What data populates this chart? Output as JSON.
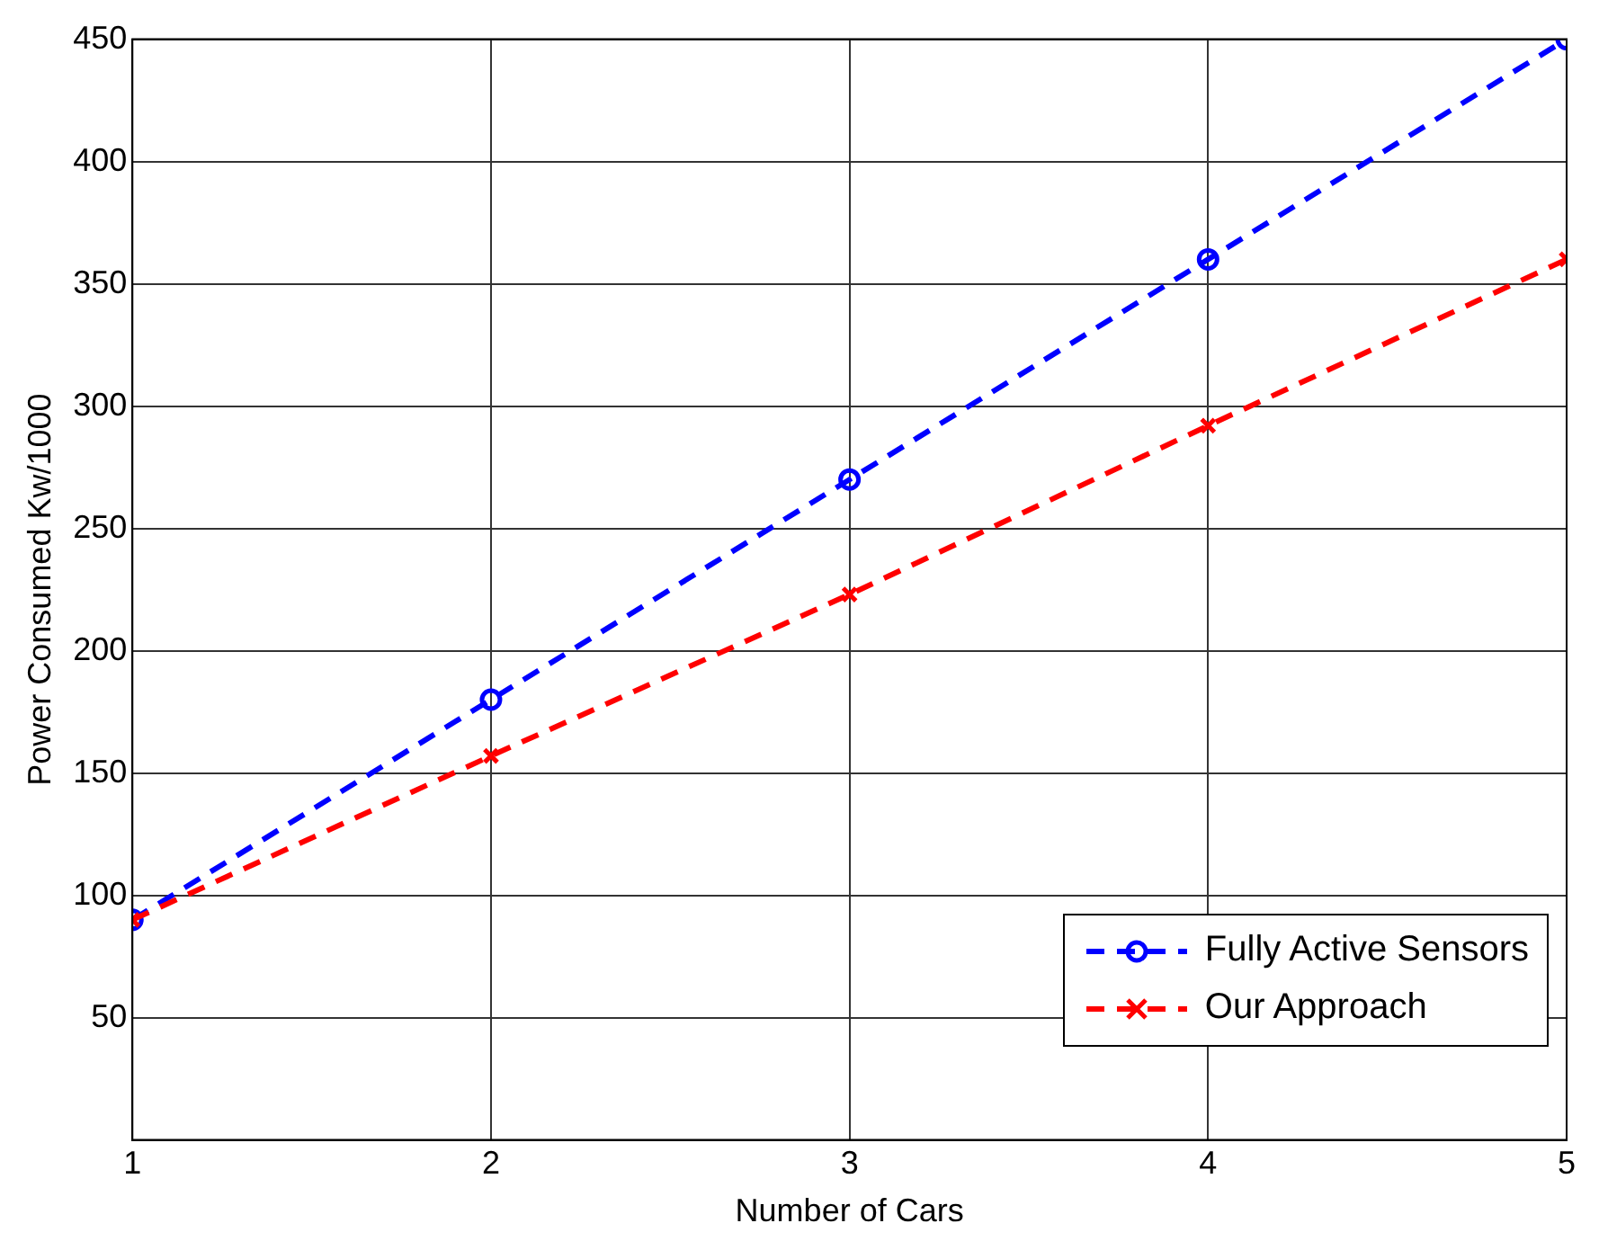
{
  "chart_data": {
    "type": "line",
    "xlabel": "Number of Cars",
    "ylabel": "Power Consumed Kw/1000",
    "x": [
      1,
      2,
      3,
      4,
      5
    ],
    "series": [
      {
        "name": "Fully Active Sensors",
        "color": "#0000ff",
        "values": [
          90,
          180,
          270,
          360,
          450
        ],
        "marker": "circle",
        "line_style": "dashed"
      },
      {
        "name": "Our Approach",
        "color": "#ff0000",
        "values": [
          90,
          157,
          223,
          292,
          360
        ],
        "marker": "cross",
        "line_style": "dashed"
      }
    ],
    "xlim": [
      1,
      5
    ],
    "xticks": [
      1,
      2,
      3,
      4,
      5
    ],
    "ylim": [
      0,
      450
    ],
    "yticks": [
      {
        "value": 0,
        "label": null
      },
      50,
      100,
      150,
      200,
      250,
      300,
      350,
      400,
      450
    ],
    "grid": true,
    "legend": "bottom right"
  }
}
